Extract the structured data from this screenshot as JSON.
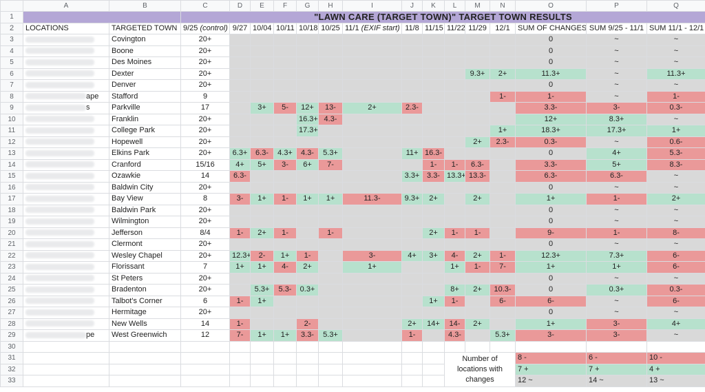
{
  "columns": [
    "A",
    "B",
    "C",
    "D",
    "E",
    "F",
    "G",
    "H",
    "I",
    "J",
    "K",
    "L",
    "M",
    "N",
    "O",
    "P",
    "Q"
  ],
  "title": "\"LAWN CARE (TARGET TOWN)\" TARGET TOWN RESULTS",
  "headers": {
    "locations": "LOCATIONS",
    "targeted_town": "TARGETED TOWN",
    "control": "9/25 (control)",
    "dates": [
      "9/27",
      "10/04",
      "10/11",
      "10/18",
      "10/25",
      "11/1 (EXIF start)",
      "11/8",
      "11/15",
      "11/22",
      "11/29",
      "12/1"
    ],
    "sum_changes": "SUM OF CHANGES",
    "sum_a": "SUM 9/25 - 11/1",
    "sum_b": "SUM 11/1 - 12/1"
  },
  "rows": [
    {
      "n": "3",
      "loc": "",
      "town": "Covington",
      "c": "20+",
      "d": [
        "",
        "",
        "",
        "",
        "",
        "",
        "",
        "",
        "",
        "",
        ""
      ],
      "o": "0",
      "p": "~",
      "q": "~",
      "cls": [
        "",
        "",
        "",
        "",
        "",
        "",
        "",
        "",
        "",
        "",
        ""
      ],
      "oc": "",
      "pc": "",
      "qc": ""
    },
    {
      "n": "4",
      "loc": "",
      "town": "Boone",
      "c": "20+",
      "d": [
        "",
        "",
        "",
        "",
        "",
        "",
        "",
        "",
        "",
        "",
        ""
      ],
      "o": "0",
      "p": "~",
      "q": "~",
      "cls": [
        "",
        "",
        "",
        "",
        "",
        "",
        "",
        "",
        "",
        "",
        ""
      ],
      "oc": "",
      "pc": "",
      "qc": ""
    },
    {
      "n": "5",
      "loc": "",
      "town": "Des Moines",
      "c": "20+",
      "d": [
        "",
        "",
        "",
        "",
        "",
        "",
        "",
        "",
        "",
        "",
        ""
      ],
      "o": "0",
      "p": "~",
      "q": "~",
      "cls": [
        "",
        "",
        "",
        "",
        "",
        "",
        "",
        "",
        "",
        "",
        ""
      ],
      "oc": "",
      "pc": "",
      "qc": ""
    },
    {
      "n": "6",
      "loc": "",
      "town": "Dexter",
      "c": "20+",
      "d": [
        "",
        "",
        "",
        "",
        "",
        "",
        "",
        "",
        "",
        "9.3+",
        "2+"
      ],
      "o": "11.3+",
      "p": "~",
      "q": "11.3+",
      "cls": [
        "",
        "",
        "",
        "",
        "",
        "",
        "",
        "",
        "",
        "g",
        "g"
      ],
      "oc": "g",
      "pc": "",
      "qc": "g"
    },
    {
      "n": "7",
      "loc": "",
      "town": "Denver",
      "c": "20+",
      "d": [
        "",
        "",
        "",
        "",
        "",
        "",
        "",
        "",
        "",
        "",
        ""
      ],
      "o": "0",
      "p": "~",
      "q": "~",
      "cls": [
        "",
        "",
        "",
        "",
        "",
        "",
        "",
        "",
        "",
        "",
        ""
      ],
      "oc": "",
      "pc": "",
      "qc": ""
    },
    {
      "n": "8",
      "loc": "ape",
      "town": "Stafford",
      "c": "9",
      "d": [
        "",
        "",
        "",
        "",
        "",
        "",
        "",
        "",
        "",
        "",
        "1-"
      ],
      "o": "1-",
      "p": "~",
      "q": "1-",
      "cls": [
        "",
        "",
        "",
        "",
        "",
        "",
        "",
        "",
        "",
        "",
        "r"
      ],
      "oc": "r",
      "pc": "",
      "qc": "r"
    },
    {
      "n": "9",
      "loc": "s",
      "town": "Parkville",
      "c": "17",
      "d": [
        "",
        "3+",
        "5-",
        "12+",
        "13-",
        "2+",
        "2.3-",
        "",
        "",
        "",
        ""
      ],
      "o": "3.3-",
      "p": "3-",
      "q": "0.3-",
      "cls": [
        "",
        "g",
        "r",
        "g",
        "r",
        "g",
        "r",
        "",
        "",
        "",
        ""
      ],
      "oc": "r",
      "pc": "r",
      "qc": "r"
    },
    {
      "n": "10",
      "loc": "",
      "town": "Franklin",
      "c": "20+",
      "d": [
        "",
        "",
        "",
        "16.3+",
        "4.3-",
        "",
        "",
        "",
        "",
        "",
        ""
      ],
      "o": "12+",
      "p": "8.3+",
      "q": "~",
      "cls": [
        "",
        "",
        "",
        "g",
        "r",
        "",
        "",
        "",
        "",
        "",
        ""
      ],
      "oc": "g",
      "pc": "g",
      "qc": ""
    },
    {
      "n": "11",
      "loc": "",
      "town": "College Park",
      "c": "20+",
      "d": [
        "",
        "",
        "",
        "17.3+",
        "",
        "",
        "",
        "",
        "",
        "",
        "1+"
      ],
      "o": "18.3+",
      "p": "17.3+",
      "q": "1+",
      "cls": [
        "",
        "",
        "",
        "g",
        "",
        "",
        "",
        "",
        "",
        "",
        "g"
      ],
      "oc": "g",
      "pc": "g",
      "qc": "g"
    },
    {
      "n": "12",
      "loc": "",
      "town": "Hopewell",
      "c": "20+",
      "d": [
        "",
        "",
        "",
        "",
        "",
        "",
        "",
        "",
        "",
        "2+",
        "2.3-"
      ],
      "o": "0.3-",
      "p": "~",
      "q": "0.6-",
      "cls": [
        "",
        "",
        "",
        "",
        "",
        "",
        "",
        "",
        "",
        "g",
        "r"
      ],
      "oc": "r",
      "pc": "",
      "qc": "r"
    },
    {
      "n": "13",
      "loc": "",
      "town": "Elkins Park",
      "c": "20+",
      "d": [
        "6.3+",
        "6.3-",
        "4.3+",
        "4.3-",
        "5.3+",
        "",
        "11+",
        "16.3-",
        "",
        "",
        ""
      ],
      "o": "0",
      "p": "4+",
      "q": "5.3-",
      "cls": [
        "g",
        "r",
        "g",
        "r",
        "g",
        "",
        "g",
        "r",
        "",
        "",
        ""
      ],
      "oc": "",
      "pc": "g",
      "qc": "r",
      "shift": 1
    },
    {
      "n": "14",
      "loc": "",
      "town": "Cranford",
      "c": "15/16",
      "d": [
        "4+",
        "5+",
        "3-",
        "6+",
        "7-",
        "",
        "",
        "1-",
        "1-",
        "6.3-",
        ""
      ],
      "o": "3.3-",
      "p": "5+",
      "q": "8.3-",
      "cls": [
        "g",
        "g",
        "r",
        "g",
        "r",
        "",
        "",
        "r",
        "r",
        "r",
        ""
      ],
      "oc": "r",
      "pc": "g",
      "qc": "r"
    },
    {
      "n": "15",
      "loc": "",
      "town": "Ozawkie",
      "c": "14",
      "d": [
        "6.3-",
        "",
        "",
        "",
        "",
        "",
        "3.3+",
        "3.3-",
        "13.3+",
        "13.3-",
        ""
      ],
      "o": "6.3-",
      "p": "6.3-",
      "q": "~",
      "cls": [
        "r",
        "",
        "",
        "",
        "",
        "",
        "g",
        "r",
        "g",
        "r",
        ""
      ],
      "oc": "r",
      "pc": "r",
      "qc": ""
    },
    {
      "n": "16",
      "loc": "",
      "town": "Baldwin City",
      "c": "20+",
      "d": [
        "",
        "",
        "",
        "",
        "",
        "",
        "",
        "",
        "",
        "",
        ""
      ],
      "o": "0",
      "p": "~",
      "q": "~",
      "cls": [
        "",
        "",
        "",
        "",
        "",
        "",
        "",
        "",
        "",
        "",
        ""
      ],
      "oc": "",
      "pc": "",
      "qc": ""
    },
    {
      "n": "17",
      "loc": "",
      "town": "Bay View",
      "c": "8",
      "d": [
        "3-",
        "1+",
        "1-",
        "1+",
        "1+",
        "11.3-",
        "9.3+",
        "2+",
        "",
        "2+",
        ""
      ],
      "o": "1+",
      "p": "1-",
      "q": "2+",
      "cls": [
        "r",
        "g",
        "r",
        "g",
        "g",
        "r",
        "g",
        "g",
        "",
        "g",
        ""
      ],
      "oc": "g",
      "pc": "r",
      "qc": "g"
    },
    {
      "n": "18",
      "loc": "",
      "town": "Baldwin Park",
      "c": "20+",
      "d": [
        "",
        "",
        "",
        "",
        "",
        "",
        "",
        "",
        "",
        "",
        ""
      ],
      "o": "0",
      "p": "~",
      "q": "~",
      "cls": [
        "",
        "",
        "",
        "",
        "",
        "",
        "",
        "",
        "",
        "",
        ""
      ],
      "oc": "",
      "pc": "",
      "qc": ""
    },
    {
      "n": "19",
      "loc": "",
      "town": "Wilmington",
      "c": "20+",
      "d": [
        "",
        "",
        "",
        "",
        "",
        "",
        "",
        "",
        "",
        "",
        ""
      ],
      "o": "0",
      "p": "~",
      "q": "~",
      "cls": [
        "",
        "",
        "",
        "",
        "",
        "",
        "",
        "",
        "",
        "",
        ""
      ],
      "oc": "",
      "pc": "",
      "qc": ""
    },
    {
      "n": "20",
      "loc": "",
      "town": "Jefferson",
      "c": "8/4",
      "d": [
        "1-",
        "2+",
        "1-",
        "",
        "1-",
        "",
        "",
        "2+",
        "1-",
        "1-",
        ""
      ],
      "o": "9-",
      "p": "1-",
      "q": "8-",
      "cls": [
        "r",
        "g",
        "r",
        "",
        "r",
        "",
        "",
        "g",
        "r",
        "r",
        ""
      ],
      "oc": "r",
      "pc": "r",
      "qc": "r"
    },
    {
      "n": "21",
      "loc": "",
      "town": "Clermont",
      "c": "20+",
      "d": [
        "",
        "",
        "",
        "",
        "",
        "",
        "",
        "",
        "",
        "",
        ""
      ],
      "o": "0",
      "p": "~",
      "q": "~",
      "cls": [
        "",
        "",
        "",
        "",
        "",
        "",
        "",
        "",
        "",
        "",
        ""
      ],
      "oc": "",
      "pc": "",
      "qc": ""
    },
    {
      "n": "22",
      "loc": "",
      "town": "Wesley Chapel",
      "c": "20+",
      "d": [
        "12.3+",
        "2-",
        "1+",
        "1-",
        "",
        "3-",
        "4+",
        "3+",
        "4-",
        "2+",
        "1-"
      ],
      "o": "12.3+",
      "p": "7.3+",
      "q": "6-",
      "cls": [
        "g",
        "r",
        "g",
        "r",
        "",
        "r",
        "g",
        "g",
        "r",
        "g",
        "r"
      ],
      "oc": "g",
      "pc": "g",
      "qc": "r"
    },
    {
      "n": "23",
      "loc": "",
      "town": "Florissant",
      "c": "7",
      "d": [
        "1+",
        "1+",
        "4-",
        "2+",
        "",
        "1+",
        "",
        "",
        "1+",
        "1-",
        "7-"
      ],
      "o": "1+",
      "p": "1+",
      "q": "6-",
      "cls": [
        "g",
        "g",
        "r",
        "g",
        "",
        "g",
        "",
        "",
        "g",
        "r",
        "r"
      ],
      "oc": "g",
      "pc": "g",
      "qc": "r"
    },
    {
      "n": "24",
      "loc": "",
      "town": "St Peters",
      "c": "20+",
      "d": [
        "",
        "",
        "",
        "",
        "",
        "",
        "",
        "",
        "",
        "",
        ""
      ],
      "o": "0",
      "p": "~",
      "q": "~",
      "cls": [
        "",
        "",
        "",
        "",
        "",
        "",
        "",
        "",
        "",
        "",
        ""
      ],
      "oc": "",
      "pc": "",
      "qc": ""
    },
    {
      "n": "25",
      "loc": "",
      "town": "Bradenton",
      "c": "20+",
      "d": [
        "",
        "5.3+",
        "5.3-",
        "0.3+",
        "",
        "",
        "",
        "",
        "8+",
        "2+",
        "10.3-"
      ],
      "o": "0",
      "p": "0.3+",
      "q": "0.3-",
      "cls": [
        "",
        "g",
        "r",
        "g",
        "",
        "",
        "",
        "",
        "g",
        "g",
        "r"
      ],
      "oc": "",
      "pc": "g",
      "qc": "r"
    },
    {
      "n": "26",
      "loc": "",
      "town": "Talbot's Corner",
      "c": "6",
      "d": [
        "1-",
        "1+",
        "",
        "",
        "",
        "",
        "",
        "1+",
        "1-",
        "",
        "6-"
      ],
      "o": "6-",
      "p": "~",
      "q": "6-",
      "cls": [
        "r",
        "g",
        "",
        "",
        "",
        "",
        "",
        "g",
        "r",
        "",
        "r"
      ],
      "oc": "r",
      "pc": "",
      "qc": "r"
    },
    {
      "n": "27",
      "loc": "",
      "town": "Hermitage",
      "c": "20+",
      "d": [
        "",
        "",
        "",
        "",
        "",
        "",
        "",
        "",
        "",
        "",
        ""
      ],
      "o": "0",
      "p": "~",
      "q": "~",
      "cls": [
        "",
        "",
        "",
        "",
        "",
        "",
        "",
        "",
        "",
        "",
        ""
      ],
      "oc": "",
      "pc": "",
      "qc": ""
    },
    {
      "n": "28",
      "loc": "",
      "town": "New Wells",
      "c": "14",
      "d": [
        "1-",
        "",
        "",
        "2-",
        "",
        "",
        "2+",
        "14+",
        "14-",
        "2+",
        ""
      ],
      "o": "1+",
      "p": "3-",
      "q": "4+",
      "cls": [
        "r",
        "",
        "",
        "r",
        "",
        "",
        "g",
        "g",
        "r",
        "g",
        ""
      ],
      "oc": "g",
      "pc": "r",
      "qc": "g"
    },
    {
      "n": "29",
      "loc": "pe",
      "town": "West Greenwich",
      "c": "12",
      "d": [
        "7-",
        "1+",
        "1+",
        "3.3-",
        "5.3+",
        "",
        "1-",
        "",
        "4.3-",
        "",
        "5.3+"
      ],
      "o": "3-",
      "p": "3-",
      "q": "~",
      "cls": [
        "r",
        "g",
        "g",
        "r",
        "g",
        "",
        "r",
        "",
        "r",
        "",
        "g"
      ],
      "oc": "r",
      "pc": "r",
      "qc": ""
    }
  ],
  "summary": {
    "label": "Number of locations with changes",
    "rows": [
      {
        "n": "31",
        "o": "8 -",
        "p": "6 -",
        "q": "10 -",
        "cls": "r"
      },
      {
        "n": "32",
        "o": "7 +",
        "p": "7 +",
        "q": "4 +",
        "cls": "g"
      },
      {
        "n": "33",
        "o": "12 ~",
        "p": "14 ~",
        "q": "13 ~",
        "cls": "gray"
      }
    ]
  },
  "colors": {
    "green": "#b7e1cd",
    "red": "#ea9999",
    "gray": "#d9d9d9",
    "title_bg": "#b4a7d6"
  }
}
